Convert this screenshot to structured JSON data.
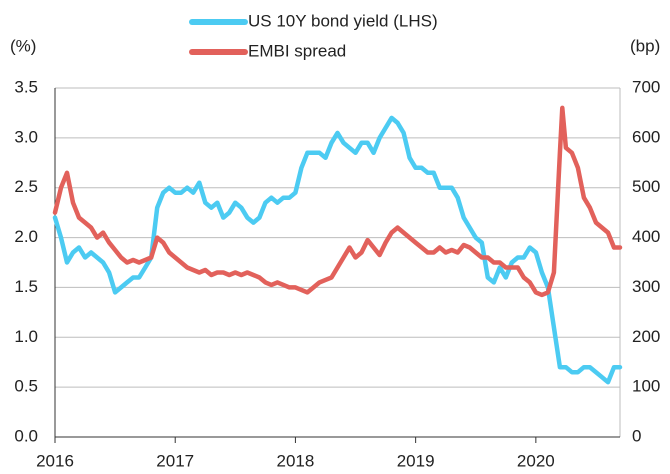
{
  "chart_data": {
    "type": "line",
    "y_label": "(%)",
    "y2_label": "(bp)",
    "xlim": [
      2016,
      2020.7
    ],
    "xticks": [
      2016,
      2017,
      2018,
      2019,
      2020
    ],
    "ylim": [
      0,
      3.5
    ],
    "yticks": [
      {
        "value": 0,
        "label": "0.0"
      },
      0.5,
      {
        "value": 1,
        "label": "1.0"
      },
      1.5,
      {
        "value": 2,
        "label": "2.0"
      },
      2.5,
      {
        "value": 3,
        "label": "3.0"
      },
      3.5
    ],
    "y2lim": [
      0,
      700
    ],
    "y2ticks": [
      0,
      100,
      200,
      300,
      400,
      500,
      600,
      700
    ],
    "grid": true,
    "series": [
      {
        "name": "US 10Y bond yield (LHS)",
        "color": "#4ccbf2",
        "x": [
          2016.0,
          2016.05,
          2016.1,
          2016.15,
          2016.2,
          2016.25,
          2016.3,
          2016.35,
          2016.4,
          2016.45,
          2016.5,
          2016.55,
          2016.6,
          2016.65,
          2016.7,
          2016.75,
          2016.8,
          2016.85,
          2016.9,
          2016.95,
          2017.0,
          2017.05,
          2017.1,
          2017.15,
          2017.2,
          2017.25,
          2017.3,
          2017.35,
          2017.4,
          2017.45,
          2017.5,
          2017.55,
          2017.6,
          2017.65,
          2017.7,
          2017.75,
          2017.8,
          2017.85,
          2017.9,
          2017.95,
          2018.0,
          2018.05,
          2018.1,
          2018.15,
          2018.2,
          2018.25,
          2018.3,
          2018.35,
          2018.4,
          2018.45,
          2018.5,
          2018.55,
          2018.6,
          2018.65,
          2018.7,
          2018.75,
          2018.8,
          2018.85,
          2018.9,
          2018.95,
          2019.0,
          2019.05,
          2019.1,
          2019.15,
          2019.2,
          2019.25,
          2019.3,
          2019.35,
          2019.4,
          2019.45,
          2019.5,
          2019.55,
          2019.6,
          2019.65,
          2019.7,
          2019.75,
          2019.8,
          2019.85,
          2019.9,
          2019.95,
          2020.0,
          2020.05,
          2020.1,
          2020.15,
          2020.2,
          2020.25,
          2020.3,
          2020.35,
          2020.4,
          2020.45,
          2020.5,
          2020.55,
          2020.6,
          2020.65,
          2020.7
        ],
        "values": [
          2.2,
          2.0,
          1.75,
          1.85,
          1.9,
          1.8,
          1.85,
          1.8,
          1.75,
          1.65,
          1.45,
          1.5,
          1.55,
          1.6,
          1.6,
          1.7,
          1.8,
          2.3,
          2.45,
          2.5,
          2.45,
          2.45,
          2.5,
          2.45,
          2.55,
          2.35,
          2.3,
          2.35,
          2.2,
          2.25,
          2.35,
          2.3,
          2.2,
          2.15,
          2.2,
          2.35,
          2.4,
          2.35,
          2.4,
          2.4,
          2.45,
          2.7,
          2.85,
          2.85,
          2.85,
          2.8,
          2.95,
          3.05,
          2.95,
          2.9,
          2.85,
          2.95,
          2.95,
          2.85,
          3.0,
          3.1,
          3.2,
          3.15,
          3.05,
          2.8,
          2.7,
          2.7,
          2.65,
          2.65,
          2.5,
          2.5,
          2.5,
          2.4,
          2.2,
          2.1,
          2.0,
          1.95,
          1.6,
          1.55,
          1.7,
          1.6,
          1.75,
          1.8,
          1.8,
          1.9,
          1.85,
          1.65,
          1.5,
          1.1,
          0.7,
          0.7,
          0.65,
          0.65,
          0.7,
          0.7,
          0.65,
          0.6,
          0.55,
          0.7,
          0.7
        ]
      },
      {
        "name": "EMBI spread",
        "color": "#e2615b",
        "axis": "y2",
        "x": [
          2016.0,
          2016.05,
          2016.1,
          2016.15,
          2016.2,
          2016.25,
          2016.3,
          2016.35,
          2016.4,
          2016.45,
          2016.5,
          2016.55,
          2016.6,
          2016.65,
          2016.7,
          2016.75,
          2016.8,
          2016.85,
          2016.9,
          2016.95,
          2017.0,
          2017.05,
          2017.1,
          2017.15,
          2017.2,
          2017.25,
          2017.3,
          2017.35,
          2017.4,
          2017.45,
          2017.5,
          2017.55,
          2017.6,
          2017.65,
          2017.7,
          2017.75,
          2017.8,
          2017.85,
          2017.9,
          2017.95,
          2018.0,
          2018.05,
          2018.1,
          2018.15,
          2018.2,
          2018.25,
          2018.3,
          2018.35,
          2018.4,
          2018.45,
          2018.5,
          2018.55,
          2018.6,
          2018.65,
          2018.7,
          2018.75,
          2018.8,
          2018.85,
          2018.9,
          2018.95,
          2019.0,
          2019.05,
          2019.1,
          2019.15,
          2019.2,
          2019.25,
          2019.3,
          2019.35,
          2019.4,
          2019.45,
          2019.5,
          2019.55,
          2019.6,
          2019.65,
          2019.7,
          2019.75,
          2019.8,
          2019.85,
          2019.9,
          2019.95,
          2020.0,
          2020.05,
          2020.1,
          2020.15,
          2020.2,
          2020.22,
          2020.25,
          2020.3,
          2020.35,
          2020.4,
          2020.45,
          2020.5,
          2020.55,
          2020.6,
          2020.65,
          2020.7
        ],
        "values": [
          450,
          500,
          530,
          470,
          440,
          430,
          420,
          400,
          410,
          390,
          375,
          360,
          350,
          355,
          350,
          355,
          360,
          400,
          390,
          370,
          360,
          350,
          340,
          335,
          330,
          335,
          325,
          330,
          330,
          325,
          330,
          325,
          330,
          325,
          320,
          310,
          305,
          310,
          305,
          300,
          300,
          295,
          290,
          300,
          310,
          315,
          320,
          340,
          360,
          380,
          360,
          370,
          395,
          380,
          365,
          390,
          410,
          420,
          410,
          400,
          390,
          380,
          370,
          370,
          380,
          370,
          375,
          370,
          385,
          380,
          370,
          360,
          360,
          350,
          350,
          340,
          340,
          340,
          320,
          310,
          290,
          285,
          290,
          330,
          570,
          660,
          580,
          570,
          540,
          480,
          460,
          430,
          420,
          410,
          380,
          380
        ]
      }
    ]
  }
}
